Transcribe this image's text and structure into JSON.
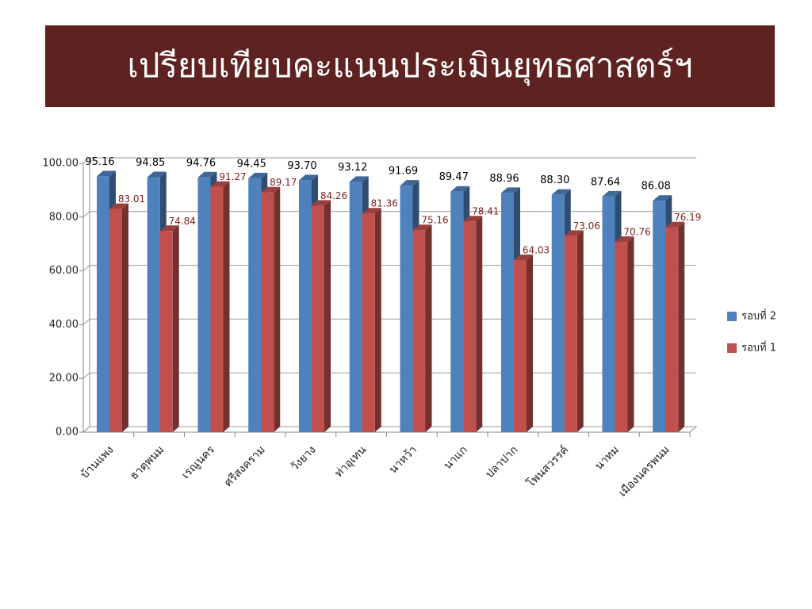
{
  "chart_data": {
    "type": "bar3d",
    "title": "เปรียบเทียบคะแนนประเมินยุทธศาสตร์ฯ",
    "categories": [
      "บ้านแพง",
      "ธาตุพนม",
      "เรณูนคร",
      "ศรีสงคราม",
      "วังยาง",
      "ท่าอุเทน",
      "นาหว้า",
      "นาแก",
      "ปลาปาก",
      "โพนสวรรค์",
      "นาทม",
      "เมืองนครพนม"
    ],
    "series": [
      {
        "name": "รอบที่ 2",
        "color": "#4f81bd",
        "values": [
          95.16,
          94.85,
          94.76,
          94.45,
          93.7,
          93.12,
          91.69,
          89.47,
          88.96,
          88.3,
          87.64,
          86.08
        ],
        "value_labels": [
          "95.16",
          "94.85",
          "94.76",
          "94.45",
          "93.70",
          "93.12",
          "91.69",
          "89.47",
          "88.96",
          "88.30",
          "87.64",
          "86.08"
        ]
      },
      {
        "name": "รอบที่ 1",
        "color": "#c0504d",
        "values": [
          83.01,
          74.84,
          91.27,
          89.17,
          84.26,
          81.36,
          75.16,
          78.41,
          64.03,
          73.06,
          70.76,
          76.19
        ],
        "value_labels": [
          "83.01",
          "74.84",
          "91.27",
          "89.17",
          "84.26",
          "81.36",
          "75.16",
          "78.41",
          "64.03",
          "73.06",
          "70.76",
          "76.19"
        ]
      }
    ],
    "ylim": [
      0,
      100
    ],
    "yticks": [
      {
        "value": 0,
        "label": "0.00"
      },
      {
        "value": 20,
        "label": "20.00"
      },
      {
        "value": 40,
        "label": "40.00"
      },
      {
        "value": 60,
        "label": "60.00"
      },
      {
        "value": 80,
        "label": "80.00"
      },
      {
        "value": 100,
        "label": "100.00"
      }
    ],
    "grid": true,
    "legend": "right"
  }
}
